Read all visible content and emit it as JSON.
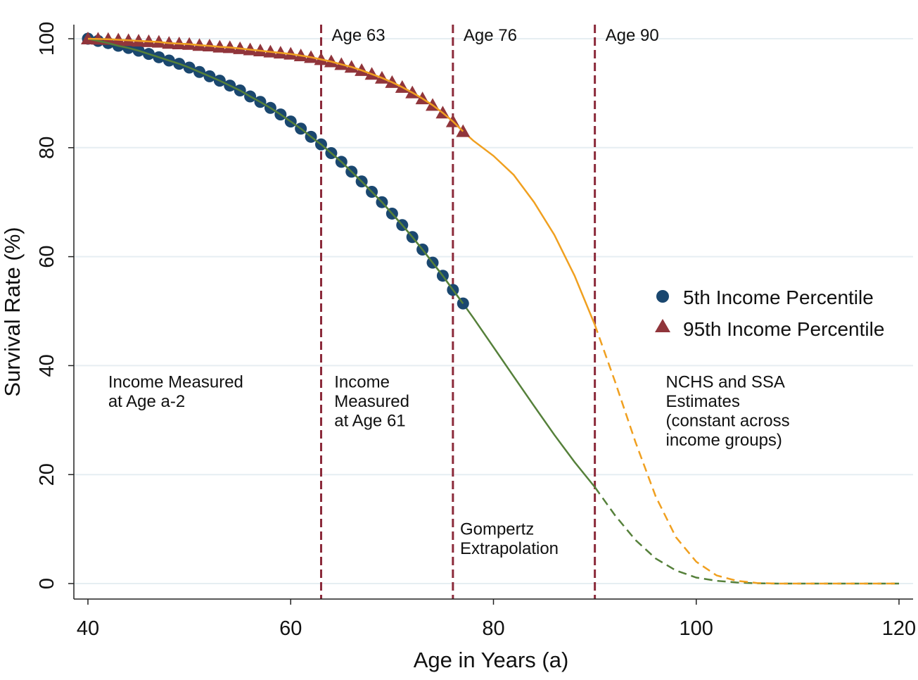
{
  "chart_data": {
    "type": "line",
    "title": "",
    "xlabel": "Age in Years (a)",
    "ylabel": "Survival Rate (%)",
    "xlim": [
      40,
      120
    ],
    "ylim": [
      0,
      100
    ],
    "xticks": [
      40,
      60,
      80,
      100,
      120
    ],
    "yticks": [
      0,
      20,
      40,
      60,
      80,
      100
    ],
    "grid": "horizontal",
    "legend_placement": "right",
    "colors": {
      "p5_marker": "#1a476f",
      "p5_line": "#55803a",
      "p95_marker": "#90353b",
      "p95_line": "#f0a020",
      "vline": "#8b2a3a",
      "grid": "#e6eef2"
    },
    "vlines": [
      {
        "x": 63,
        "label": "Age 63"
      },
      {
        "x": 76,
        "label": "Age 76"
      },
      {
        "x": 90,
        "label": "Age 90"
      }
    ],
    "annotations": [
      {
        "x": 42,
        "y": 36,
        "lines": [
          "Income Measured",
          "at Age a-2"
        ]
      },
      {
        "x": 64.3,
        "y": 36,
        "lines": [
          "Income",
          "Measured",
          "at Age 61"
        ]
      },
      {
        "x": 76.7,
        "y": 9,
        "lines": [
          "Gompertz",
          "Extrapolation"
        ]
      },
      {
        "x": 97,
        "y": 36,
        "lines": [
          "NCHS and SSA",
          "Estimates",
          "(constant across",
          "income groups)"
        ]
      }
    ],
    "series": [
      {
        "name": "5th Income Percentile",
        "marker": "circle",
        "marker_x": [
          40,
          41,
          42,
          43,
          44,
          45,
          46,
          47,
          48,
          49,
          50,
          51,
          52,
          53,
          54,
          55,
          56,
          57,
          58,
          59,
          60,
          61,
          62,
          63,
          64,
          65,
          66,
          67,
          68,
          69,
          70,
          71,
          72,
          73,
          74,
          75,
          76,
          77
        ],
        "marker_y": [
          100,
          99.6,
          99.2,
          98.7,
          98.3,
          97.8,
          97.2,
          96.6,
          96.0,
          95.4,
          94.7,
          93.9,
          93.1,
          92.3,
          91.4,
          90.5,
          89.4,
          88.4,
          87.3,
          86.1,
          84.8,
          83.5,
          82.0,
          80.6,
          79.0,
          77.4,
          75.6,
          73.8,
          71.9,
          70.0,
          67.9,
          65.8,
          63.6,
          61.3,
          58.9,
          56.5,
          53.9,
          51.4
        ],
        "extrapolation_x": [
          77,
          78,
          80,
          82,
          84,
          86,
          88,
          90
        ],
        "extrapolation_y": [
          51.4,
          48.8,
          43.4,
          38.0,
          32.6,
          27.3,
          22.3,
          17.7
        ],
        "estimate_x": [
          90,
          92,
          94,
          96,
          98,
          100,
          102,
          104,
          106,
          108,
          120
        ],
        "estimate_y": [
          17.7,
          12.5,
          8.0,
          4.6,
          2.4,
          1.1,
          0.5,
          0.2,
          0.05,
          0,
          0
        ]
      },
      {
        "name": "95th Income Percentile",
        "marker": "triangle",
        "marker_x": [
          40,
          41,
          42,
          43,
          44,
          45,
          46,
          47,
          48,
          49,
          50,
          51,
          52,
          53,
          54,
          55,
          56,
          57,
          58,
          59,
          60,
          61,
          62,
          63,
          64,
          65,
          66,
          67,
          68,
          69,
          70,
          71,
          72,
          73,
          74,
          75,
          76,
          77
        ],
        "marker_y": [
          100,
          99.95,
          99.9,
          99.8,
          99.7,
          99.6,
          99.5,
          99.4,
          99.2,
          99.1,
          99.0,
          98.8,
          98.7,
          98.5,
          98.4,
          98.2,
          98.0,
          97.8,
          97.6,
          97.4,
          97.2,
          96.9,
          96.6,
          96.2,
          95.8,
          95.3,
          94.8,
          94.2,
          93.5,
          92.8,
          92.0,
          91.1,
          90.1,
          89.0,
          87.8,
          86.4,
          84.8,
          83.0
        ],
        "extrapolation_x": [
          77,
          78,
          80,
          82,
          84,
          86,
          88,
          90
        ],
        "extrapolation_y": [
          83.0,
          81.3,
          78.5,
          75.0,
          70.0,
          64.0,
          56.5,
          47.5
        ],
        "estimate_x": [
          90,
          92,
          94,
          96,
          98,
          100,
          102,
          104,
          106,
          108,
          120
        ],
        "estimate_y": [
          47.5,
          37,
          26,
          16,
          8.5,
          4,
          1.5,
          0.5,
          0.1,
          0,
          0
        ]
      }
    ]
  }
}
